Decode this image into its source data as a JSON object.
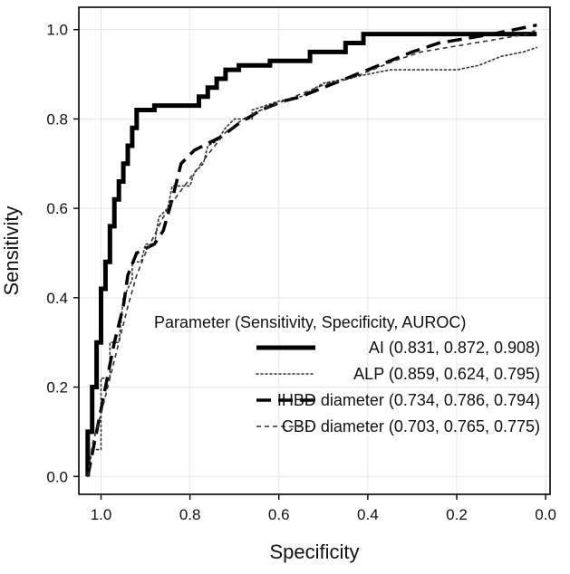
{
  "chart_data": {
    "type": "line",
    "xlabel": "Specificity",
    "ylabel": "Sensitivity",
    "xlim": [
      1.05,
      -0.01
    ],
    "ylim": [
      -0.04,
      1.05
    ],
    "x_reversed": true,
    "xticks": [
      1.0,
      0.8,
      0.6,
      0.4,
      0.2,
      0.0
    ],
    "xtick_labels": [
      "1.0",
      "0.8",
      "0.6",
      "0.4",
      "0.2",
      "0.0"
    ],
    "yticks": [
      0.0,
      0.2,
      0.4,
      0.6,
      0.8,
      1.0
    ],
    "ytick_labels": [
      "0.0",
      "0.2",
      "0.4",
      "0.6",
      "0.8",
      "1.0"
    ],
    "grid": true,
    "legend_title": "Parameter (Sensitivity, Specificity, AUROC)",
    "legend_position": "bottom-right",
    "series": [
      {
        "name": "AI (0.831, 0.872, 0.908)",
        "style": "solid-thick",
        "color": "#000000",
        "points": [
          [
            1.03,
            0.0
          ],
          [
            1.03,
            0.1
          ],
          [
            1.02,
            0.1
          ],
          [
            1.02,
            0.2
          ],
          [
            1.01,
            0.2
          ],
          [
            1.01,
            0.3
          ],
          [
            1.0,
            0.3
          ],
          [
            1.0,
            0.42
          ],
          [
            0.99,
            0.42
          ],
          [
            0.99,
            0.48
          ],
          [
            0.98,
            0.48
          ],
          [
            0.98,
            0.56
          ],
          [
            0.97,
            0.56
          ],
          [
            0.97,
            0.62
          ],
          [
            0.96,
            0.62
          ],
          [
            0.96,
            0.66
          ],
          [
            0.95,
            0.66
          ],
          [
            0.95,
            0.7
          ],
          [
            0.94,
            0.7
          ],
          [
            0.94,
            0.74
          ],
          [
            0.93,
            0.74
          ],
          [
            0.93,
            0.78
          ],
          [
            0.92,
            0.78
          ],
          [
            0.92,
            0.82
          ],
          [
            0.88,
            0.82
          ],
          [
            0.88,
            0.83
          ],
          [
            0.85,
            0.83
          ],
          [
            0.78,
            0.83
          ],
          [
            0.78,
            0.85
          ],
          [
            0.76,
            0.85
          ],
          [
            0.76,
            0.87
          ],
          [
            0.74,
            0.87
          ],
          [
            0.74,
            0.89
          ],
          [
            0.72,
            0.89
          ],
          [
            0.72,
            0.91
          ],
          [
            0.69,
            0.91
          ],
          [
            0.69,
            0.92
          ],
          [
            0.62,
            0.92
          ],
          [
            0.62,
            0.93
          ],
          [
            0.53,
            0.93
          ],
          [
            0.53,
            0.95
          ],
          [
            0.45,
            0.95
          ],
          [
            0.45,
            0.97
          ],
          [
            0.41,
            0.97
          ],
          [
            0.41,
            0.99
          ],
          [
            0.25,
            0.99
          ],
          [
            0.02,
            0.99
          ]
        ]
      },
      {
        "name": "ALP (0.859, 0.624, 0.795)",
        "style": "dotted",
        "color": "#333333",
        "points": [
          [
            1.03,
            0.0
          ],
          [
            1.02,
            0.06
          ],
          [
            1.0,
            0.06
          ],
          [
            1.0,
            0.22
          ],
          [
            0.98,
            0.22
          ],
          [
            0.98,
            0.3
          ],
          [
            0.96,
            0.3
          ],
          [
            0.95,
            0.4
          ],
          [
            0.93,
            0.44
          ],
          [
            0.93,
            0.48
          ],
          [
            0.91,
            0.48
          ],
          [
            0.9,
            0.52
          ],
          [
            0.88,
            0.52
          ],
          [
            0.87,
            0.58
          ],
          [
            0.85,
            0.6
          ],
          [
            0.84,
            0.65
          ],
          [
            0.8,
            0.65
          ],
          [
            0.79,
            0.68
          ],
          [
            0.77,
            0.7
          ],
          [
            0.76,
            0.74
          ],
          [
            0.74,
            0.75
          ],
          [
            0.72,
            0.78
          ],
          [
            0.7,
            0.8
          ],
          [
            0.66,
            0.8
          ],
          [
            0.66,
            0.82
          ],
          [
            0.6,
            0.84
          ],
          [
            0.55,
            0.85
          ],
          [
            0.5,
            0.88
          ],
          [
            0.45,
            0.89
          ],
          [
            0.4,
            0.9
          ],
          [
            0.35,
            0.91
          ],
          [
            0.3,
            0.91
          ],
          [
            0.2,
            0.91
          ],
          [
            0.15,
            0.92
          ],
          [
            0.1,
            0.94
          ],
          [
            0.05,
            0.95
          ],
          [
            0.02,
            0.96
          ]
        ]
      },
      {
        "name": "IHBD diameter (0.734, 0.786, 0.794)",
        "style": "long-dash",
        "color": "#000000",
        "points": [
          [
            1.03,
            0.0
          ],
          [
            1.01,
            0.1
          ],
          [
            0.99,
            0.2
          ],
          [
            0.97,
            0.3
          ],
          [
            0.95,
            0.38
          ],
          [
            0.94,
            0.45
          ],
          [
            0.92,
            0.5
          ],
          [
            0.88,
            0.52
          ],
          [
            0.86,
            0.55
          ],
          [
            0.84,
            0.62
          ],
          [
            0.82,
            0.7
          ],
          [
            0.79,
            0.73
          ],
          [
            0.73,
            0.76
          ],
          [
            0.69,
            0.79
          ],
          [
            0.64,
            0.82
          ],
          [
            0.59,
            0.84
          ],
          [
            0.55,
            0.85
          ],
          [
            0.5,
            0.87
          ],
          [
            0.45,
            0.89
          ],
          [
            0.4,
            0.91
          ],
          [
            0.35,
            0.93
          ],
          [
            0.3,
            0.95
          ],
          [
            0.24,
            0.97
          ],
          [
            0.18,
            0.98
          ],
          [
            0.12,
            0.99
          ],
          [
            0.07,
            1.0
          ],
          [
            0.02,
            1.01
          ]
        ]
      },
      {
        "name": "CBD diameter (0.703, 0.765, 0.775)",
        "style": "short-dash",
        "color": "#333333",
        "points": [
          [
            1.03,
            0.0
          ],
          [
            1.02,
            0.07
          ],
          [
            1.0,
            0.14
          ],
          [
            0.98,
            0.22
          ],
          [
            0.96,
            0.3
          ],
          [
            0.94,
            0.38
          ],
          [
            0.92,
            0.45
          ],
          [
            0.9,
            0.5
          ],
          [
            0.88,
            0.54
          ],
          [
            0.85,
            0.6
          ],
          [
            0.82,
            0.64
          ],
          [
            0.79,
            0.68
          ],
          [
            0.76,
            0.72
          ],
          [
            0.72,
            0.77
          ],
          [
            0.68,
            0.8
          ],
          [
            0.64,
            0.82
          ],
          [
            0.59,
            0.84
          ],
          [
            0.54,
            0.86
          ],
          [
            0.49,
            0.88
          ],
          [
            0.44,
            0.89
          ],
          [
            0.39,
            0.91
          ],
          [
            0.34,
            0.93
          ],
          [
            0.28,
            0.95
          ],
          [
            0.22,
            0.96
          ],
          [
            0.16,
            0.97
          ],
          [
            0.1,
            0.98
          ],
          [
            0.04,
            0.99
          ],
          [
            0.02,
            1.0
          ]
        ]
      }
    ]
  }
}
